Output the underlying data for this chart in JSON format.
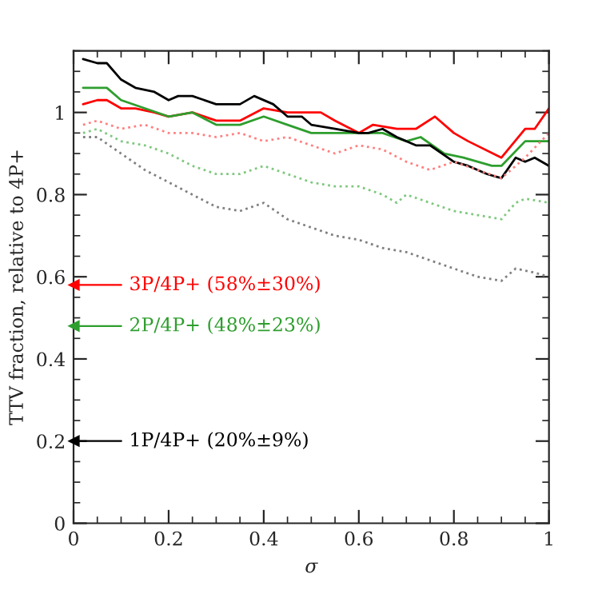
{
  "chart_data": {
    "type": "line",
    "xlabel": "σ",
    "ylabel": "TTV fraction, relative to 4P+",
    "xlim": [
      0,
      1
    ],
    "ylim": [
      0,
      1.15
    ],
    "xticks": [
      0,
      0.2,
      0.4,
      0.6,
      0.8,
      1
    ],
    "yticks": [
      0,
      0.2,
      0.4,
      0.6,
      0.8,
      1
    ],
    "grid": false,
    "legend": "left",
    "series": [
      {
        "color": "#ff0000",
        "line_style": "solid",
        "x": [
          0.02,
          0.05,
          0.07,
          0.1,
          0.13,
          0.17,
          0.2,
          0.25,
          0.3,
          0.35,
          0.4,
          0.45,
          0.5,
          0.52,
          0.55,
          0.6,
          0.63,
          0.68,
          0.72,
          0.76,
          0.8,
          0.83,
          0.9,
          0.95,
          0.97,
          1.0
        ],
        "values": [
          1.02,
          1.03,
          1.03,
          1.01,
          1.01,
          1.0,
          0.99,
          1.0,
          0.98,
          0.98,
          1.01,
          1.0,
          1.0,
          1.0,
          0.98,
          0.95,
          0.97,
          0.96,
          0.96,
          0.99,
          0.95,
          0.93,
          0.89,
          0.96,
          0.96,
          1.01
        ]
      },
      {
        "color": "#2e9e2e",
        "line_style": "solid",
        "x": [
          0.02,
          0.07,
          0.1,
          0.15,
          0.2,
          0.25,
          0.3,
          0.35,
          0.4,
          0.45,
          0.5,
          0.55,
          0.6,
          0.65,
          0.7,
          0.73,
          0.78,
          0.82,
          0.88,
          0.9,
          0.95,
          1.0
        ],
        "values": [
          1.06,
          1.06,
          1.03,
          1.01,
          0.99,
          1.0,
          0.97,
          0.97,
          0.99,
          0.97,
          0.95,
          0.95,
          0.95,
          0.95,
          0.93,
          0.94,
          0.9,
          0.89,
          0.87,
          0.87,
          0.93,
          0.93
        ]
      },
      {
        "color": "#000000",
        "line_style": "solid",
        "x": [
          0.02,
          0.05,
          0.07,
          0.1,
          0.13,
          0.17,
          0.2,
          0.22,
          0.25,
          0.3,
          0.35,
          0.38,
          0.42,
          0.45,
          0.48,
          0.5,
          0.55,
          0.6,
          0.62,
          0.65,
          0.68,
          0.72,
          0.75,
          0.8,
          0.83,
          0.87,
          0.9,
          0.93,
          0.95,
          0.97,
          1.0
        ],
        "values": [
          1.13,
          1.12,
          1.12,
          1.08,
          1.06,
          1.05,
          1.03,
          1.04,
          1.04,
          1.02,
          1.02,
          1.04,
          1.02,
          0.99,
          0.99,
          0.97,
          0.96,
          0.95,
          0.95,
          0.96,
          0.94,
          0.92,
          0.92,
          0.88,
          0.87,
          0.85,
          0.84,
          0.89,
          0.88,
          0.89,
          0.87
        ]
      },
      {
        "color": "#ff8080",
        "line_style": "dotted",
        "x": [
          0.02,
          0.05,
          0.1,
          0.15,
          0.2,
          0.25,
          0.3,
          0.35,
          0.4,
          0.45,
          0.5,
          0.55,
          0.6,
          0.65,
          0.7,
          0.75,
          0.8,
          0.85,
          0.9,
          0.95,
          1.0
        ],
        "values": [
          0.97,
          0.98,
          0.96,
          0.97,
          0.95,
          0.95,
          0.94,
          0.95,
          0.93,
          0.94,
          0.92,
          0.9,
          0.92,
          0.91,
          0.88,
          0.86,
          0.88,
          0.86,
          0.84,
          0.89,
          0.95
        ]
      },
      {
        "color": "#7fc87f",
        "line_style": "dotted",
        "x": [
          0.02,
          0.05,
          0.1,
          0.15,
          0.2,
          0.25,
          0.3,
          0.35,
          0.4,
          0.45,
          0.5,
          0.55,
          0.6,
          0.65,
          0.68,
          0.7,
          0.75,
          0.8,
          0.85,
          0.9,
          0.93,
          0.95,
          1.0
        ],
        "values": [
          0.95,
          0.96,
          0.93,
          0.92,
          0.9,
          0.87,
          0.85,
          0.85,
          0.87,
          0.85,
          0.83,
          0.82,
          0.82,
          0.8,
          0.78,
          0.8,
          0.78,
          0.76,
          0.75,
          0.74,
          0.78,
          0.79,
          0.78
        ]
      },
      {
        "color": "#808080",
        "line_style": "dotted",
        "x": [
          0.02,
          0.05,
          0.1,
          0.15,
          0.2,
          0.25,
          0.3,
          0.35,
          0.4,
          0.45,
          0.5,
          0.55,
          0.6,
          0.65,
          0.7,
          0.75,
          0.8,
          0.85,
          0.9,
          0.93,
          0.97,
          1.0
        ],
        "values": [
          0.94,
          0.94,
          0.9,
          0.86,
          0.83,
          0.8,
          0.77,
          0.76,
          0.78,
          0.74,
          0.72,
          0.7,
          0.69,
          0.67,
          0.66,
          0.64,
          0.62,
          0.6,
          0.59,
          0.62,
          0.61,
          0.6
        ]
      },
      {
        "type": "scatter",
        "name": "3P/4P+ (58%±30%)",
        "color": "#ff0000",
        "marker": "triangle",
        "x": [
          0
        ],
        "values": [
          0.58
        ]
      },
      {
        "type": "scatter",
        "name": "2P/4P+ (48%±23%)",
        "color": "#2e9e2e",
        "marker": "triangle",
        "x": [
          0
        ],
        "values": [
          0.48
        ]
      },
      {
        "type": "scatter",
        "name": "1P/4P+ (20%±9%)",
        "color": "#000000",
        "marker": "triangle",
        "x": [
          0
        ],
        "values": [
          0.2
        ]
      }
    ]
  }
}
